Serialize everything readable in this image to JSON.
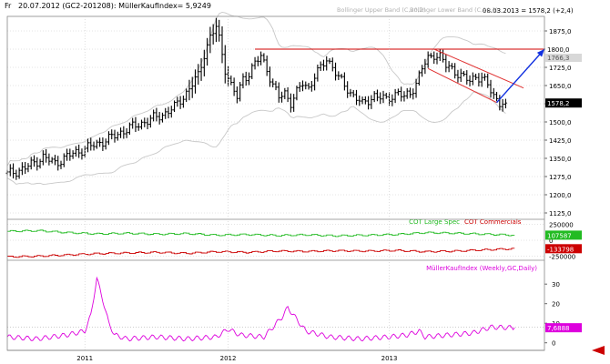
{
  "header": {
    "left_label": "Fr",
    "info": "20.07.2012 (GC2-201208): MüllerKaufIndex= 5,9249",
    "right_info": "08.03.2013 = 1578,2 (+2,4)"
  },
  "colors": {
    "price_bars": "#000000",
    "bollinger": "#c8c8c8",
    "resistance_line": "#d00000",
    "channel": "#e03030",
    "projection_arrow": "#1030e0",
    "cot_large_spec": "#22bb22",
    "cot_commercials": "#cc0000",
    "mullerkauf": "#dd00dd",
    "grid": "#c8c8c8"
  },
  "chart_data": [
    {
      "type": "candlestick",
      "title": "",
      "legend": [
        "Bollinger Upper Band (C,20,2)",
        "Bollinger Lower Band (C,20,2)"
      ],
      "x_ticks": [
        "2011",
        "2012",
        "2013"
      ],
      "y_ticks": [
        "1125,0",
        "1200,0",
        "1275,0",
        "1350,0",
        "1425,0",
        "1500,0",
        "1575,0",
        "1650,0",
        "1725,0",
        "1800,0",
        "1875,0"
      ],
      "ylim": [
        1110,
        1935
      ],
      "price_labels": {
        "current": "1578,2",
        "level": "1800,0",
        "band": "1766,3"
      },
      "weekly_close_anchors": [
        [
          0,
          1285
        ],
        [
          6,
          1310
        ],
        [
          12,
          1355
        ],
        [
          16,
          1330
        ],
        [
          22,
          1370
        ],
        [
          28,
          1400
        ],
        [
          34,
          1430
        ],
        [
          40,
          1470
        ],
        [
          46,
          1500
        ],
        [
          52,
          1530
        ],
        [
          56,
          1560
        ],
        [
          60,
          1620
        ],
        [
          64,
          1690
        ],
        [
          66,
          1780
        ],
        [
          68,
          1850
        ],
        [
          70,
          1890
        ],
        [
          71,
          1840
        ],
        [
          73,
          1720
        ],
        [
          75,
          1650
        ],
        [
          77,
          1600
        ],
        [
          79,
          1680
        ],
        [
          81,
          1700
        ],
        [
          83,
          1740
        ],
        [
          85,
          1770
        ],
        [
          87,
          1720
        ],
        [
          89,
          1650
        ],
        [
          91,
          1600
        ],
        [
          93,
          1620
        ],
        [
          95,
          1580
        ],
        [
          97,
          1620
        ],
        [
          99,
          1660
        ],
        [
          101,
          1640
        ],
        [
          103,
          1690
        ],
        [
          105,
          1720
        ],
        [
          107,
          1760
        ],
        [
          109,
          1730
        ],
        [
          111,
          1680
        ],
        [
          113,
          1650
        ],
        [
          115,
          1620
        ],
        [
          117,
          1600
        ],
        [
          119,
          1570
        ],
        [
          121,
          1590
        ],
        [
          123,
          1610
        ],
        [
          125,
          1600
        ],
        [
          127,
          1590
        ],
        [
          129,
          1610
        ],
        [
          131,
          1620
        ],
        [
          133,
          1600
        ],
        [
          135,
          1620
        ],
        [
          137,
          1660
        ],
        [
          139,
          1720
        ],
        [
          141,
          1760
        ],
        [
          143,
          1780
        ],
        [
          145,
          1770
        ],
        [
          147,
          1730
        ],
        [
          149,
          1720
        ],
        [
          151,
          1700
        ],
        [
          153,
          1680
        ],
        [
          155,
          1670
        ],
        [
          157,
          1690
        ],
        [
          159,
          1680
        ],
        [
          161,
          1650
        ],
        [
          163,
          1610
        ],
        [
          165,
          1580
        ],
        [
          167,
          1578
        ]
      ],
      "resistance_level": 1800,
      "channel_upper": [
        [
          143,
          1800
        ],
        [
          173,
          1640
        ]
      ],
      "channel_lower": [
        [
          141,
          1720
        ],
        [
          164,
          1580
        ]
      ],
      "projection": [
        [
          164,
          1580
        ],
        [
          180,
          1800
        ]
      ]
    },
    {
      "type": "line",
      "title": "",
      "series": [
        {
          "name": "COT Large Spec",
          "last_label": "107587",
          "points": [
            [
              0,
              140
            ],
            [
              10,
              150
            ],
            [
              20,
              120
            ],
            [
              30,
              100
            ],
            [
              40,
              110
            ],
            [
              50,
              95
            ],
            [
              60,
              105
            ],
            [
              70,
              80
            ],
            [
              80,
              90
            ],
            [
              90,
              75
            ],
            [
              100,
              85
            ],
            [
              110,
              70
            ],
            [
              120,
              80
            ],
            [
              130,
              90
            ],
            [
              140,
              120
            ],
            [
              150,
              110
            ],
            [
              160,
              95
            ],
            [
              170,
              80
            ]
          ]
        },
        {
          "name": "COT Commercials",
          "last_label": "-133798",
          "points": [
            [
              0,
              -260
            ],
            [
              10,
              -250
            ],
            [
              20,
              -230
            ],
            [
              30,
              -210
            ],
            [
              40,
              -200
            ],
            [
              50,
              -190
            ],
            [
              60,
              -205
            ],
            [
              70,
              -180
            ],
            [
              80,
              -190
            ],
            [
              90,
              -170
            ],
            [
              100,
              -175
            ],
            [
              110,
              -165
            ],
            [
              120,
              -170
            ],
            [
              130,
              -160
            ],
            [
              140,
              -180
            ],
            [
              150,
              -170
            ],
            [
              160,
              -150
            ],
            [
              170,
              -133
            ]
          ]
        }
      ],
      "y_ticks": [
        "250000",
        "0",
        "-250000"
      ],
      "ylim": [
        -300,
        300
      ]
    },
    {
      "type": "line",
      "title": "",
      "series": [
        {
          "name": "MüllerKaufIndex (Weekly,GC,Daily)",
          "last_label": "7,6888",
          "points": [
            [
              0,
              3
            ],
            [
              10,
              2
            ],
            [
              20,
              4
            ],
            [
              26,
              6
            ],
            [
              28,
              14
            ],
            [
              30,
              33
            ],
            [
              32,
              22
            ],
            [
              34,
              10
            ],
            [
              36,
              4
            ],
            [
              40,
              2
            ],
            [
              50,
              3
            ],
            [
              60,
              2
            ],
            [
              70,
              3
            ],
            [
              74,
              7
            ],
            [
              78,
              4
            ],
            [
              86,
              3
            ],
            [
              92,
              13
            ],
            [
              94,
              18
            ],
            [
              96,
              14
            ],
            [
              100,
              6
            ],
            [
              108,
              3
            ],
            [
              118,
              2
            ],
            [
              128,
              3
            ],
            [
              134,
              4
            ],
            [
              138,
              6
            ],
            [
              140,
              3
            ],
            [
              148,
              4
            ],
            [
              156,
              5
            ],
            [
              162,
              8
            ],
            [
              170,
              7.7
            ]
          ]
        }
      ],
      "y_ticks": [
        "30",
        "20",
        "10",
        "0"
      ],
      "ylim": [
        -2,
        38
      ]
    }
  ]
}
